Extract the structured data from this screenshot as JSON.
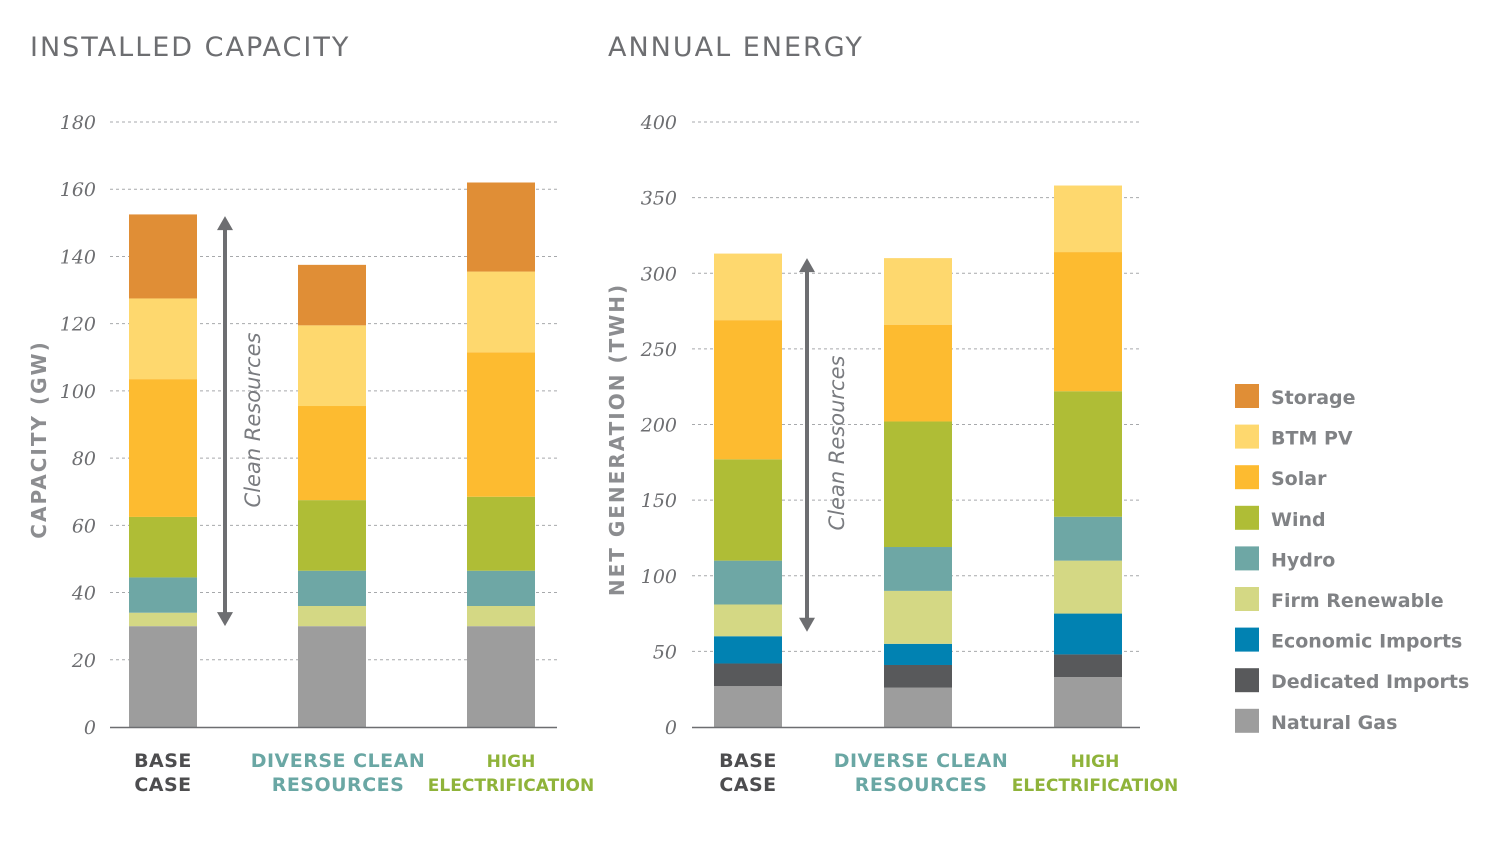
{
  "chart_data": [
    {
      "type": "bar",
      "stacked": true,
      "title": "INSTALLED CAPACITY",
      "ylabel": "CAPACITY (GW)",
      "ylim": [
        0,
        180
      ],
      "yticks": [
        0,
        20,
        40,
        60,
        80,
        100,
        120,
        140,
        160,
        180
      ],
      "grid": true,
      "categories": [
        {
          "lines": [
            "BASE",
            "CASE"
          ],
          "color": "#4d4d4f"
        },
        {
          "lines": [
            "DIVERSE CLEAN",
            "RESOURCES"
          ],
          "color": "#6aa7a4"
        },
        {
          "lines": [
            "HIGH",
            "ELECTRIFICATION"
          ],
          "color": "#8fb33a"
        }
      ],
      "annotation": "Clean Resources",
      "series": [
        {
          "name": "Natural Gas",
          "values": [
            30,
            30,
            30
          ]
        },
        {
          "name": "Dedicated Imports",
          "values": [
            0,
            0,
            0
          ]
        },
        {
          "name": "Economic Imports",
          "values": [
            0,
            0,
            0
          ]
        },
        {
          "name": "Firm Renewable",
          "values": [
            4,
            6,
            6
          ]
        },
        {
          "name": "Hydro",
          "values": [
            10.5,
            10.5,
            10.5
          ]
        },
        {
          "name": "Wind",
          "values": [
            18,
            21,
            22
          ]
        },
        {
          "name": "Solar",
          "values": [
            41,
            28,
            43
          ]
        },
        {
          "name": "BTM PV",
          "values": [
            24,
            24,
            24
          ]
        },
        {
          "name": "Storage",
          "values": [
            25,
            18,
            26.5
          ]
        }
      ]
    },
    {
      "type": "bar",
      "stacked": true,
      "title": "ANNUAL ENERGY",
      "ylabel": "NET GENERATION (TWH)",
      "ylim": [
        0,
        400
      ],
      "yticks": [
        0,
        50,
        100,
        150,
        200,
        250,
        300,
        350,
        400
      ],
      "grid": true,
      "categories": [
        {
          "lines": [
            "BASE",
            "CASE"
          ],
          "color": "#4d4d4f"
        },
        {
          "lines": [
            "DIVERSE CLEAN",
            "RESOURCES"
          ],
          "color": "#6aa7a4"
        },
        {
          "lines": [
            "HIGH",
            "ELECTRIFICATION"
          ],
          "color": "#8fb33a"
        }
      ],
      "annotation": "Clean Resources",
      "series": [
        {
          "name": "Natural Gas",
          "values": [
            27,
            26,
            33
          ]
        },
        {
          "name": "Dedicated Imports",
          "values": [
            15,
            15,
            15
          ]
        },
        {
          "name": "Economic Imports",
          "values": [
            18,
            14,
            27
          ]
        },
        {
          "name": "Firm Renewable",
          "values": [
            21,
            35,
            35
          ]
        },
        {
          "name": "Hydro",
          "values": [
            29,
            29,
            29
          ]
        },
        {
          "name": "Wind",
          "values": [
            67,
            83,
            83
          ]
        },
        {
          "name": "Solar",
          "values": [
            92,
            64,
            92
          ]
        },
        {
          "name": "BTM PV",
          "values": [
            44,
            44,
            44
          ]
        },
        {
          "name": "Storage",
          "values": [
            0,
            0,
            0
          ]
        }
      ]
    }
  ],
  "legend": [
    {
      "name": "Storage",
      "color": "#e08e36"
    },
    {
      "name": "BTM PV",
      "color": "#fed86e"
    },
    {
      "name": "Solar",
      "color": "#fdbb30"
    },
    {
      "name": "Wind",
      "color": "#afbd36"
    },
    {
      "name": "Hydro",
      "color": "#6ea7a5"
    },
    {
      "name": "Firm Renewable",
      "color": "#d4d884"
    },
    {
      "name": "Economic Imports",
      "color": "#0182b2"
    },
    {
      "name": "Dedicated Imports",
      "color": "#58595b"
    },
    {
      "name": "Natural Gas",
      "color": "#9d9d9d"
    }
  ]
}
